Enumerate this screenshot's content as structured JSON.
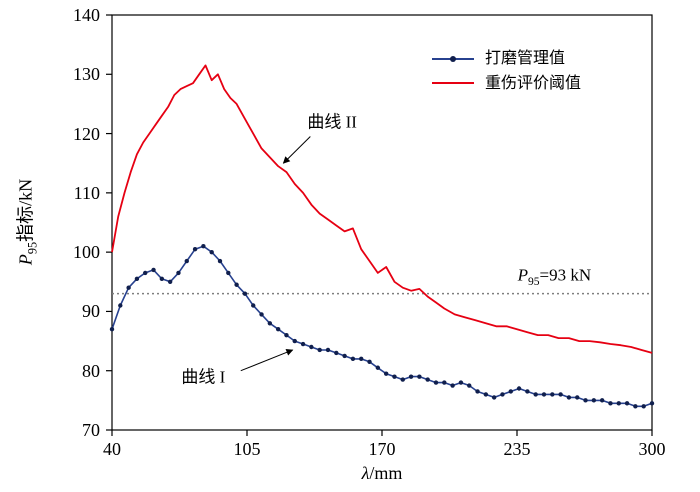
{
  "figure": {
    "background": "#ffffff"
  },
  "chart_data": {
    "type": "line",
    "title": "",
    "xlabel": {
      "italic": "λ",
      "rest": "/mm"
    },
    "ylabel": {
      "italic": "P",
      "sub": "95",
      "rest": "指标/kN"
    },
    "xlim": [
      40,
      300
    ],
    "ylim": [
      70,
      140
    ],
    "xticks": [
      40,
      105,
      170,
      235,
      300
    ],
    "yticks": [
      70,
      80,
      90,
      100,
      110,
      120,
      130,
      140
    ],
    "grid": false,
    "legend": {
      "position": "top-right"
    },
    "reference_line": {
      "y": 93,
      "color": "#7f7f7f",
      "style": "dotted",
      "label": {
        "italic": "P",
        "sub": "95",
        "rest": "=93 kN"
      },
      "label_x": 253,
      "label_y": 94
    },
    "series": [
      {
        "name": "打磨管理值",
        "color": "#27418f",
        "marker": "dot",
        "marker_color": "#101f4d",
        "x": [
          40,
          44,
          48,
          52,
          56,
          60,
          64,
          68,
          72,
          76,
          80,
          84,
          88,
          92,
          96,
          100,
          104,
          108,
          112,
          116,
          120,
          124,
          128,
          132,
          136,
          140,
          144,
          148,
          152,
          156,
          160,
          164,
          168,
          172,
          176,
          180,
          184,
          188,
          192,
          196,
          200,
          204,
          208,
          212,
          216,
          220,
          224,
          228,
          232,
          236,
          240,
          244,
          248,
          252,
          256,
          260,
          264,
          268,
          272,
          276,
          280,
          284,
          288,
          292,
          296,
          300
        ],
        "y": [
          87,
          91,
          94,
          95.5,
          96.5,
          97,
          95.5,
          95,
          96.5,
          98.5,
          100.5,
          101,
          100,
          98.5,
          96.5,
          94.5,
          93,
          91,
          89.5,
          88,
          87,
          86,
          85,
          84.5,
          84,
          83.5,
          83.5,
          83,
          82.5,
          82,
          82,
          81.5,
          80.5,
          79.5,
          79,
          78.5,
          79,
          79,
          78.5,
          78,
          78,
          77.5,
          78,
          77.5,
          76.5,
          76,
          75.5,
          76,
          76.5,
          77,
          76.5,
          76,
          76,
          76,
          76,
          75.5,
          75.5,
          75,
          75,
          75,
          74.5,
          74.5,
          74.5,
          74,
          74,
          74.5
        ]
      },
      {
        "name": "重伤评价阈值",
        "color": "#e60012",
        "marker": "none",
        "x": [
          40,
          43,
          46,
          49,
          52,
          55,
          58,
          61,
          64,
          67,
          70,
          73,
          76,
          79,
          82,
          85,
          88,
          91,
          94,
          97,
          100,
          104,
          108,
          112,
          116,
          120,
          124,
          128,
          132,
          136,
          140,
          144,
          148,
          152,
          156,
          160,
          164,
          168,
          172,
          176,
          180,
          184,
          188,
          192,
          196,
          200,
          205,
          210,
          215,
          220,
          225,
          230,
          235,
          240,
          245,
          250,
          255,
          260,
          265,
          270,
          275,
          280,
          285,
          290,
          295,
          300
        ],
        "y": [
          100,
          106,
          110,
          113.5,
          116.5,
          118.5,
          120,
          121.5,
          123,
          124.5,
          126.5,
          127.5,
          128,
          128.5,
          130,
          131.5,
          129,
          130,
          127.5,
          126,
          125,
          122.5,
          120,
          117.5,
          116,
          114.5,
          113.5,
          111.5,
          110,
          108,
          106.5,
          105.5,
          104.5,
          103.5,
          104,
          100.5,
          98.5,
          96.5,
          97.5,
          95,
          94,
          93.5,
          93.8,
          92.5,
          91.5,
          90.5,
          89.5,
          89,
          88.5,
          88,
          87.5,
          87.5,
          87,
          86.5,
          86,
          86,
          85.5,
          85.5,
          85,
          85,
          84.8,
          84.5,
          84.3,
          84,
          83.5,
          83
        ]
      }
    ],
    "annotations": [
      {
        "text": "曲线 II",
        "x": 146,
        "y": 122.3,
        "arrow": {
          "x1": 135.5,
          "y1": 119.5,
          "x2": 122.5,
          "y2": 115
        }
      },
      {
        "text": "曲线 I",
        "x": 84,
        "y": 79.2,
        "arrow": {
          "x1": 102,
          "y1": 80,
          "x2": 127,
          "y2": 83.5
        }
      }
    ]
  }
}
